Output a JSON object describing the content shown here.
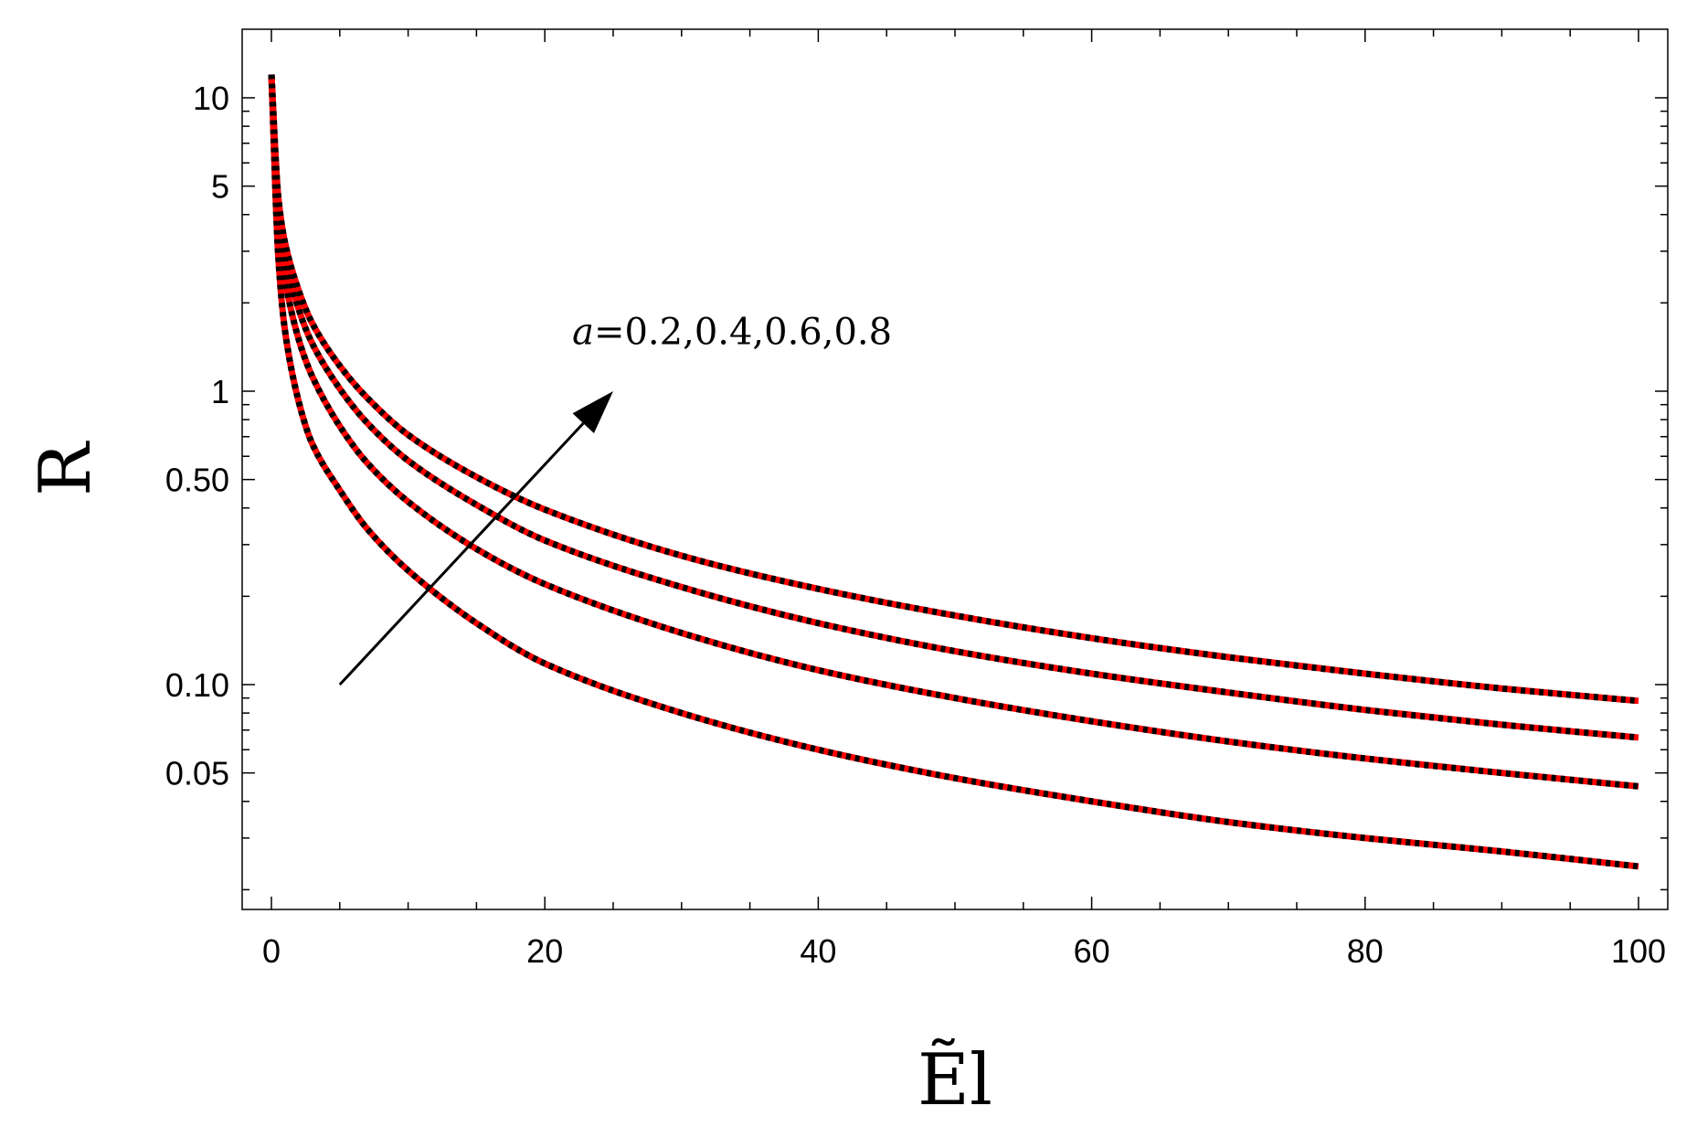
{
  "chart_data": {
    "type": "line",
    "title": "",
    "xlabel": "Ẽl",
    "ylabel": "R",
    "xlim": [
      0,
      100
    ],
    "ylim": [
      0.0155,
      15.5
    ],
    "yscale": "log",
    "grid": false,
    "x_ticks": [
      0,
      20,
      40,
      60,
      80,
      100
    ],
    "x_tick_labels": [
      "0",
      "20",
      "40",
      "60",
      "80",
      "100"
    ],
    "y_ticks": [
      0.05,
      0.1,
      0.5,
      1,
      5,
      10
    ],
    "y_tick_labels": [
      "0.05",
      "0.10",
      "0.50",
      "1",
      "5",
      "10"
    ],
    "x": [
      0,
      0.5,
      1,
      2,
      3,
      5,
      7,
      10,
      15,
      20,
      30,
      40,
      50,
      60,
      70,
      80,
      90,
      100
    ],
    "series": [
      {
        "a": 0.2,
        "values": [
          12.0,
          2.9,
          1.6,
          0.92,
          0.66,
          0.46,
          0.34,
          0.245,
          0.162,
          0.118,
          0.08,
          0.06,
          0.048,
          0.04,
          0.034,
          0.03,
          0.027,
          0.024
        ]
      },
      {
        "a": 0.4,
        "values": [
          12.0,
          3.7,
          2.4,
          1.5,
          1.12,
          0.76,
          0.57,
          0.42,
          0.29,
          0.22,
          0.15,
          0.112,
          0.09,
          0.075,
          0.064,
          0.056,
          0.05,
          0.045
        ]
      },
      {
        "a": 0.6,
        "values": [
          12.0,
          4.2,
          2.9,
          1.9,
          1.45,
          1.02,
          0.78,
          0.58,
          0.41,
          0.31,
          0.215,
          0.162,
          0.13,
          0.109,
          0.094,
          0.082,
          0.073,
          0.066
        ]
      },
      {
        "a": 0.8,
        "values": [
          12.0,
          4.6,
          3.2,
          2.2,
          1.7,
          1.22,
          0.95,
          0.71,
          0.51,
          0.395,
          0.275,
          0.212,
          0.172,
          0.144,
          0.124,
          0.109,
          0.097,
          0.088
        ]
      }
    ],
    "line_colors": {
      "dash_red": "#ff0000",
      "dash_black": "#000000"
    },
    "annotation": {
      "text_italic": "a",
      "text_rest": "=0.2,0.4,0.6,0.8",
      "arrow_from": [
        5,
        0.1
      ],
      "arrow_to": [
        25,
        1.0
      ],
      "text_at": [
        22,
        1.6
      ]
    }
  }
}
